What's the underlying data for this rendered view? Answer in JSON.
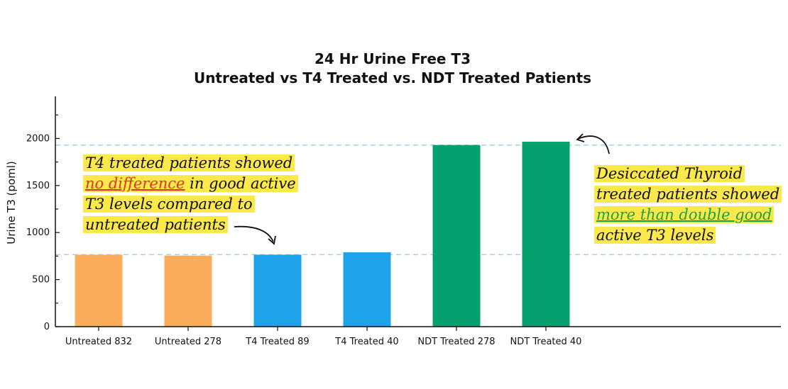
{
  "chart_data": {
    "type": "bar",
    "title_lines": [
      "24 Hr Urine Free T3",
      "Untreated vs T4 Treated vs. NDT Treated Patients"
    ],
    "xlabel": "",
    "ylabel": "Urine T3 (poml)",
    "ylim": [
      0,
      2500
    ],
    "yticks": [
      0,
      500,
      1000,
      1500,
      2000
    ],
    "categories": [
      "Untreated 832",
      "Untreated 278",
      "T4 Treated 89",
      "T4 Treated 40",
      "NDT Treated 278",
      "NDT Treated 40"
    ],
    "values": [
      765,
      755,
      765,
      790,
      1930,
      1965
    ],
    "bar_colors": [
      "#fbad5b",
      "#fbad5b",
      "#1ea3eb",
      "#1ea3eb",
      "#04a06d",
      "#04a06d"
    ],
    "reference_lines": [
      765,
      1930
    ],
    "reference_line_color": "#a8d0e6",
    "grid": false,
    "legend": "none"
  },
  "annotations": {
    "left_note": {
      "line1": "T4 treated patients showed",
      "line2_emphasis": "no difference",
      "line2_rest": " in good active",
      "line3": "T3 levels compared to",
      "line4": "untreated patients"
    },
    "right_note": {
      "line1": "Desiccated Thyroid",
      "line2": "treated patients showed",
      "line3_emphasis": "more than double good",
      "line4": "active T3 levels"
    },
    "highlight_color": "#fbe84a",
    "emphasis_red": "#e0322a",
    "emphasis_green": "#16a34a"
  }
}
